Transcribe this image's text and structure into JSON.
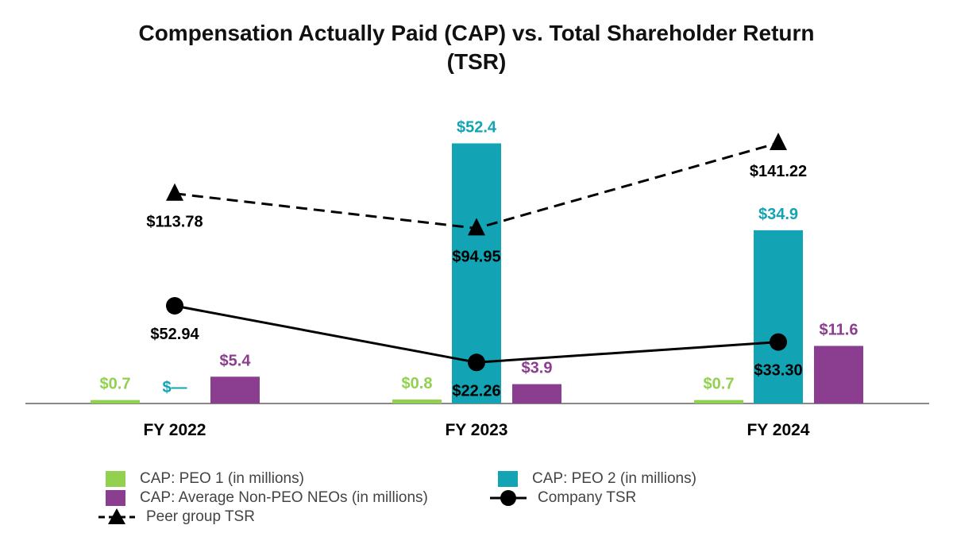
{
  "chart_data": {
    "type": "bar",
    "title_lines": [
      "Compensation Actually Paid (CAP) vs. Total Shareholder Return",
      "(TSR)"
    ],
    "categories": [
      "FY 2022",
      "FY 2023",
      "FY 2024"
    ],
    "series": [
      {
        "name": "CAP: PEO 1 (in millions)",
        "kind": "bar",
        "color": "#92d050",
        "values": [
          0.7,
          0.8,
          0.7
        ],
        "labels": [
          "$0.7",
          "$0.8",
          "$0.7"
        ]
      },
      {
        "name": "CAP: PEO 2 (in millions)",
        "kind": "bar",
        "color": "#12a3b4",
        "values": [
          0,
          52.4,
          34.9
        ],
        "labels": [
          "$—",
          "$52.4",
          "$34.9"
        ]
      },
      {
        "name": "CAP: Average Non-PEO NEOs (in millions)",
        "kind": "bar",
        "color": "#8b3e8f",
        "values": [
          5.4,
          3.9,
          11.6
        ],
        "labels": [
          "$5.4",
          "$3.9",
          "$11.6"
        ]
      },
      {
        "name": "Company TSR",
        "kind": "line",
        "color": "#000000",
        "marker": "circle",
        "values": [
          52.94,
          22.26,
          33.3
        ],
        "labels": [
          "$52.94",
          "$22.26",
          "$33.30"
        ]
      },
      {
        "name": "Peer group TSR",
        "kind": "line",
        "color": "#000000",
        "marker": "triangle",
        "dash": true,
        "values": [
          113.78,
          94.95,
          141.22
        ],
        "labels": [
          "$113.78",
          "$94.95",
          "$141.22"
        ]
      }
    ],
    "bar_axis": {
      "min": 0,
      "max": 60
    },
    "line_axis": {
      "min": 0,
      "max": 160
    },
    "legend_position": "bottom"
  }
}
